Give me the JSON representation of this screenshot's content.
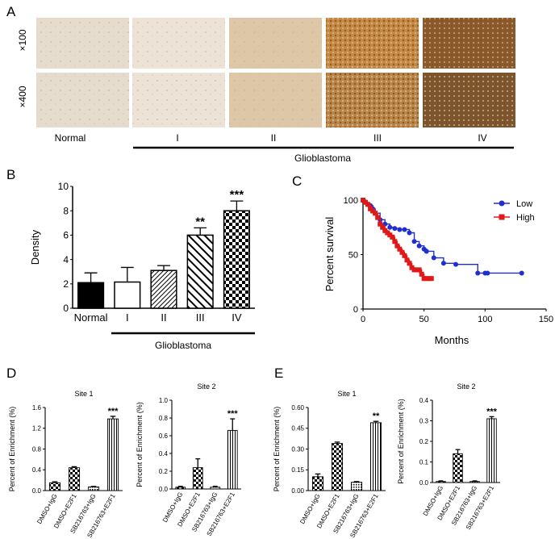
{
  "panel_A": {
    "label": "A",
    "row_labels": [
      "×100",
      "×400"
    ],
    "columns": [
      "Normal",
      "I",
      "II",
      "III",
      "IV"
    ],
    "group_label": "Glioblastoma",
    "colors": {
      "normal": "#e6dccd",
      "grade1": "#ece3d6",
      "grade2": "#ddc7a6",
      "grade3_100x": "#c48a45",
      "grade3_400x": "#b8864a",
      "grade4_100x": "#8a5a2c",
      "grade4_400x": "#7a5530"
    }
  },
  "chart_data": [
    {
      "panel": "B",
      "type": "bar",
      "title": "",
      "ylabel": "Density",
      "xlabel": "",
      "ylim": [
        0,
        10
      ],
      "yticks": [
        "0",
        "2",
        "4",
        "6",
        "8",
        "10"
      ],
      "categories": [
        "Normal",
        "I",
        "II",
        "III",
        "IV"
      ],
      "values": [
        2.1,
        2.15,
        3.1,
        6.0,
        8.0
      ],
      "errors": [
        0.8,
        1.2,
        0.4,
        0.6,
        0.8
      ],
      "significance": [
        "",
        "",
        "",
        "**",
        "***"
      ],
      "group_label": "Glioblastoma",
      "fills": [
        "solid",
        "white",
        "diag-fine",
        "diag-bold",
        "checker"
      ]
    },
    {
      "panel": "C",
      "type": "line",
      "title": "",
      "xlabel": "Months",
      "ylabel": "Percent survival",
      "xlim": [
        0,
        150
      ],
      "ylim": [
        0,
        100
      ],
      "xticks": [
        "0",
        "50",
        "100",
        "150"
      ],
      "yticks": [
        "0",
        "50",
        "100"
      ],
      "legend_position": "top-right",
      "series": [
        {
          "name": "Low",
          "color": "#1f2fd0",
          "marker": "circle",
          "x": [
            0,
            2,
            4,
            6,
            8,
            10,
            14,
            18,
            22,
            26,
            30,
            34,
            38,
            42,
            46,
            50,
            52,
            58,
            66,
            76,
            94,
            100,
            102,
            130
          ],
          "y": [
            100,
            98,
            96,
            95,
            92,
            88,
            82,
            78,
            75,
            74,
            73,
            73,
            70,
            62,
            58,
            55,
            53,
            47,
            42,
            41,
            33,
            33,
            33,
            33
          ]
        },
        {
          "name": "High",
          "color": "#e01818",
          "marker": "square",
          "x": [
            0,
            2,
            4,
            6,
            8,
            10,
            12,
            14,
            16,
            18,
            20,
            22,
            24,
            26,
            28,
            30,
            32,
            34,
            36,
            38,
            40,
            42,
            44,
            46,
            48,
            50,
            52,
            54,
            56
          ],
          "y": [
            100,
            98,
            96,
            92,
            90,
            88,
            84,
            78,
            75,
            72,
            70,
            68,
            66,
            62,
            58,
            55,
            52,
            49,
            45,
            42,
            38,
            36,
            36,
            36,
            32,
            28,
            28,
            28,
            28
          ]
        }
      ]
    },
    {
      "panel": "D",
      "type": "bar",
      "title": "Site 1",
      "ylabel": "Percent of Enrichment (%)",
      "ylim": [
        0,
        1.6
      ],
      "yticks": [
        "0.0",
        "0.4",
        "0.8",
        "1.2",
        "1.6"
      ],
      "categories": [
        "DMSO+IgG",
        "DMSO+E2F1",
        "SB216763+IgG",
        "SB216763+E2F1"
      ],
      "values": [
        0.15,
        0.44,
        0.07,
        1.38
      ],
      "errors": [
        0.02,
        0.02,
        0.01,
        0.05
      ],
      "significance": [
        "",
        "",
        "",
        "***"
      ],
      "fills": [
        "checker",
        "checker",
        "dots",
        "vlines"
      ]
    },
    {
      "panel": "D",
      "type": "bar",
      "title": "Site 2",
      "ylabel": "Percent of Enrichment (%)",
      "ylim": [
        0,
        1.0
      ],
      "yticks": [
        "0.0",
        "0.2",
        "0.4",
        "0.6",
        "0.8",
        "1.0"
      ],
      "categories": [
        "DMSO+IgG",
        "DMSO+E2F1",
        "SB216763+IgG",
        "SB216763+E2F1"
      ],
      "values": [
        0.02,
        0.24,
        0.02,
        0.66
      ],
      "errors": [
        0.01,
        0.1,
        0.01,
        0.13
      ],
      "significance": [
        "",
        "",
        "",
        "***"
      ],
      "fills": [
        "checker",
        "checker",
        "dots",
        "vlines"
      ]
    },
    {
      "panel": "E",
      "type": "bar",
      "title": "Site 1",
      "ylabel": "Percent of Enrichment (%)",
      "ylim": [
        0,
        0.6
      ],
      "yticks": [
        "0.00",
        "0.15",
        "0.30",
        "0.45",
        "0.60"
      ],
      "categories": [
        "DMSO+IgG",
        "DMSO+E2F1",
        "SB216763+IgG",
        "SB216763+E2F1"
      ],
      "values": [
        0.1,
        0.34,
        0.06,
        0.49
      ],
      "errors": [
        0.02,
        0.01,
        0.005,
        0.01
      ],
      "significance": [
        "",
        "",
        "",
        "**"
      ],
      "fills": [
        "checker",
        "checker",
        "dots",
        "vlines"
      ]
    },
    {
      "panel": "E",
      "type": "bar",
      "title": "Site 2",
      "ylabel": "Percent of Enrichment (%)",
      "ylim": [
        0,
        0.4
      ],
      "yticks": [
        "0.0",
        "0.1",
        "0.2",
        "0.3",
        "0.4"
      ],
      "categories": [
        "DMSO+IgG",
        "DMSO+E2F1",
        "SB216763+IgG",
        "SB216763+E2F1"
      ],
      "values": [
        0.005,
        0.14,
        0.005,
        0.31
      ],
      "errors": [
        0.003,
        0.02,
        0.003,
        0.01
      ],
      "significance": [
        "",
        "",
        "",
        "***"
      ],
      "fills": [
        "checker",
        "checker",
        "dots",
        "vlines"
      ]
    }
  ],
  "panel_letters": {
    "B": "B",
    "C": "C",
    "D": "D",
    "E": "E"
  }
}
